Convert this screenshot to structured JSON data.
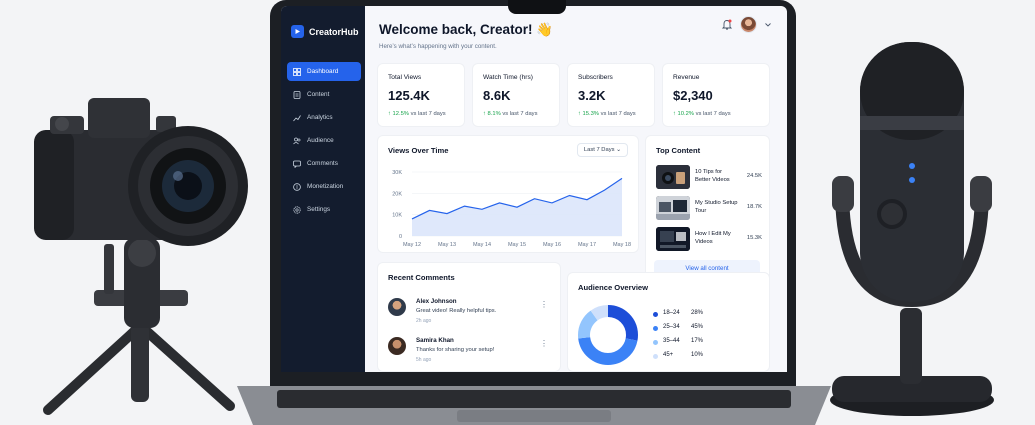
{
  "brand": {
    "name": "CreatorHub"
  },
  "sidebar": {
    "items": [
      {
        "label": "Dashboard",
        "icon": "grid-icon",
        "active": true
      },
      {
        "label": "Content",
        "icon": "document-icon"
      },
      {
        "label": "Analytics",
        "icon": "line-chart-icon"
      },
      {
        "label": "Audience",
        "icon": "users-icon"
      },
      {
        "label": "Comments",
        "icon": "comment-icon"
      },
      {
        "label": "Monetization",
        "icon": "dollar-icon"
      },
      {
        "label": "Settings",
        "icon": "gear-icon"
      }
    ]
  },
  "header": {
    "title": "Welcome back, Creator! 👋",
    "subtitle": "Here’s what’s happening with your content.",
    "notification_icon": "bell-icon",
    "avatar_icon": "avatar",
    "menu_icon": "chevron-down-icon"
  },
  "stats": [
    {
      "label": "Total Views",
      "value": "125.4K",
      "delta": "↑ 12.5%",
      "delta_suffix": "vs last 7 days"
    },
    {
      "label": "Watch Time (hrs)",
      "value": "8.6K",
      "delta": "↑ 8.1%",
      "delta_suffix": "vs last 7 days"
    },
    {
      "label": "Subscribers",
      "value": "3.2K",
      "delta": "↑ 15.3%",
      "delta_suffix": "vs last 7 days"
    },
    {
      "label": "Revenue",
      "value": "$2,340",
      "delta": "↑ 10.2%",
      "delta_suffix": "vs last 7 days"
    }
  ],
  "views_card": {
    "title": "Views Over Time",
    "range_select": "Last 7 Days"
  },
  "chart_data": {
    "type": "area",
    "title": "Views Over Time",
    "categories": [
      "May 12",
      "May 13",
      "May 14",
      "May 15",
      "May 16",
      "May 17",
      "May 18"
    ],
    "series": [
      {
        "x": [
          0,
          0.5,
          1,
          1.5,
          2,
          2.5,
          3,
          3.5,
          4,
          4.5,
          5,
          5.5,
          6
        ],
        "values": [
          8000,
          12000,
          10500,
          14000,
          12500,
          15500,
          13500,
          17500,
          15500,
          19000,
          17000,
          21500,
          27000
        ]
      }
    ],
    "yticks": [
      "0",
      "10K",
      "20K",
      "30K"
    ],
    "ylim": [
      0,
      30000
    ],
    "grid": true,
    "colors": {
      "line": "#2563eb",
      "fill": "#dbe6fb"
    }
  },
  "top_content": {
    "title": "Top Content",
    "items": [
      {
        "title": "10 Tips for Better Videos",
        "views": "24.5K"
      },
      {
        "title": "My Studio Setup Tour",
        "views": "18.7K"
      },
      {
        "title": "How I Edit My Videos",
        "views": "15.3K"
      }
    ],
    "view_all": "View all content"
  },
  "recent_comments": {
    "title": "Recent Comments",
    "items": [
      {
        "name": "Alex Johnson",
        "text": "Great video! Really helpful tips.",
        "time": "2h ago"
      },
      {
        "name": "Samira Khan",
        "text": "Thanks for sharing your setup!",
        "time": "5h ago"
      }
    ]
  },
  "audience": {
    "title": "Audience Overview",
    "segments": [
      {
        "label": "18–24",
        "value": "28%",
        "pct": 28,
        "color": "#1d4ed8"
      },
      {
        "label": "25–34",
        "value": "45%",
        "pct": 45,
        "color": "#3b82f6"
      },
      {
        "label": "35–44",
        "value": "17%",
        "pct": 17,
        "color": "#93c5fd"
      },
      {
        "label": "45+",
        "value": "10%",
        "pct": 10,
        "color": "#cfe0fb"
      }
    ]
  },
  "colors": {
    "accent": "#2563eb",
    "sidebar": "#131c2e",
    "positive": "#16a34a"
  }
}
